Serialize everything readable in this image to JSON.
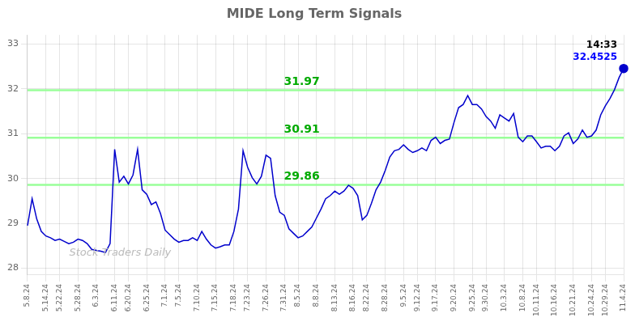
{
  "chart_data": {
    "type": "line",
    "title": "MIDE Long Term Signals",
    "categories": [
      "5.8.24",
      null,
      null,
      null,
      "5.14.24",
      null,
      null,
      "5.22.24",
      null,
      null,
      null,
      "5.28.24",
      null,
      null,
      null,
      "6.3.24",
      null,
      null,
      null,
      "6.11.24",
      null,
      null,
      "6.20.24",
      null,
      null,
      null,
      "6.25.24",
      null,
      null,
      null,
      "7.1.24",
      null,
      null,
      "7.5.24",
      null,
      null,
      null,
      "7.10.24",
      null,
      null,
      null,
      "7.15.24",
      null,
      null,
      null,
      "7.18.24",
      null,
      null,
      "7.23.24",
      null,
      null,
      null,
      "7.26.24",
      null,
      null,
      null,
      "7.31.24",
      null,
      null,
      "8.5.24",
      null,
      null,
      null,
      "8.8.24",
      null,
      null,
      null,
      "8.13.24",
      null,
      null,
      null,
      "8.16.24",
      null,
      null,
      "8.22.24",
      null,
      null,
      null,
      "8.28.24",
      null,
      null,
      null,
      "9.5.24",
      null,
      null,
      "9.12.24",
      null,
      null,
      null,
      "9.17.24",
      null,
      null,
      null,
      "9.20.24",
      null,
      null,
      null,
      "9.25.24",
      null,
      null,
      "9.30.24",
      null,
      null,
      null,
      "10.3.24",
      null,
      null,
      null,
      "10.8.24",
      null,
      null,
      "10.11.24",
      null,
      null,
      null,
      "10.16.24",
      null,
      null,
      null,
      "10.21.24",
      null,
      null,
      null,
      "10.24.24",
      null,
      null,
      "10.29.24",
      null,
      null,
      null,
      "11.4.24"
    ],
    "values": [
      28.95,
      29.55,
      29.1,
      28.82,
      28.72,
      28.68,
      28.62,
      28.65,
      28.6,
      28.55,
      28.58,
      28.65,
      28.62,
      28.55,
      28.42,
      28.4,
      28.38,
      28.35,
      28.55,
      30.65,
      29.92,
      30.05,
      29.88,
      30.08,
      30.65,
      29.75,
      29.65,
      29.42,
      29.48,
      29.22,
      28.85,
      28.75,
      28.65,
      28.58,
      28.62,
      28.62,
      28.68,
      28.62,
      28.82,
      28.65,
      28.52,
      28.45,
      28.48,
      28.52,
      28.52,
      28.82,
      29.32,
      30.62,
      30.25,
      30.02,
      29.88,
      30.05,
      30.52,
      30.45,
      29.62,
      29.25,
      29.18,
      28.88,
      28.78,
      28.68,
      28.72,
      28.82,
      28.92,
      29.12,
      29.32,
      29.55,
      29.62,
      29.72,
      29.65,
      29.72,
      29.85,
      29.78,
      29.62,
      29.08,
      29.18,
      29.45,
      29.75,
      29.92,
      30.18,
      30.48,
      30.62,
      30.65,
      30.75,
      30.65,
      30.58,
      30.62,
      30.68,
      30.62,
      30.85,
      30.92,
      30.78,
      30.85,
      30.88,
      31.25,
      31.58,
      31.65,
      31.85,
      31.65,
      31.65,
      31.55,
      31.38,
      31.28,
      31.12,
      31.42,
      31.35,
      31.28,
      31.45,
      30.92,
      30.82,
      30.95,
      30.95,
      30.82,
      30.68,
      30.72,
      30.72,
      30.62,
      30.72,
      30.95,
      31.02,
      30.78,
      30.88,
      31.08,
      30.92,
      30.95,
      31.08,
      31.42,
      31.62,
      31.78,
      31.98,
      32.25,
      32.4525
    ],
    "color": "#0000cc",
    "ylim": [
      27.85,
      33.2
    ],
    "yticks": [
      28,
      29,
      30,
      31,
      32,
      33
    ],
    "grid": true,
    "hlines": [
      {
        "y": 29.86,
        "label": "29.86",
        "color": "#99ff99",
        "label_color": "#00aa00"
      },
      {
        "y": 30.91,
        "label": "30.91",
        "color": "#99ff99",
        "label_color": "#00aa00"
      },
      {
        "y": 31.97,
        "label": "31.97",
        "color": "#99ff99",
        "label_color": "#00aa00"
      }
    ],
    "annotations": [
      {
        "text": "14:33",
        "color": "black"
      },
      {
        "text": "32.4525",
        "color": "blue"
      }
    ],
    "watermark": {
      "text": "Stock Traders Daily",
      "color": "#bbbbbb"
    }
  }
}
